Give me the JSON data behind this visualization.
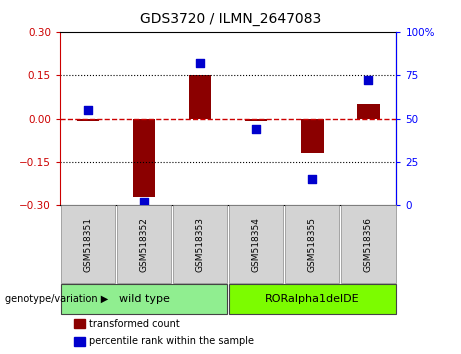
{
  "title": "GDS3720 / ILMN_2647083",
  "samples": [
    "GSM518351",
    "GSM518352",
    "GSM518353",
    "GSM518354",
    "GSM518355",
    "GSM518356"
  ],
  "transformed_count": [
    -0.01,
    -0.27,
    0.15,
    -0.01,
    -0.12,
    0.05
  ],
  "percentile_rank": [
    55,
    2,
    82,
    44,
    15,
    72
  ],
  "bar_color": "#8B0000",
  "dot_color": "#0000CD",
  "zero_line_color": "#cc0000",
  "ylim_left": [
    -0.3,
    0.3
  ],
  "ylim_right": [
    0,
    100
  ],
  "yticks_left": [
    -0.3,
    -0.15,
    0.0,
    0.15,
    0.3
  ],
  "yticks_right": [
    0,
    25,
    50,
    75,
    100
  ],
  "groups": [
    {
      "label": "wild type",
      "n_samples": 3,
      "color": "#90EE90"
    },
    {
      "label": "RORalpha1delDE",
      "n_samples": 3,
      "color": "#7CFC00"
    }
  ],
  "group_label_prefix": "genotype/variation",
  "legend_items": [
    {
      "label": "transformed count",
      "color": "#8B0000"
    },
    {
      "label": "percentile rank within the sample",
      "color": "#0000CD"
    }
  ],
  "bar_width": 0.4,
  "dot_size": 35,
  "grid_linestyle": ":",
  "grid_color": "black"
}
